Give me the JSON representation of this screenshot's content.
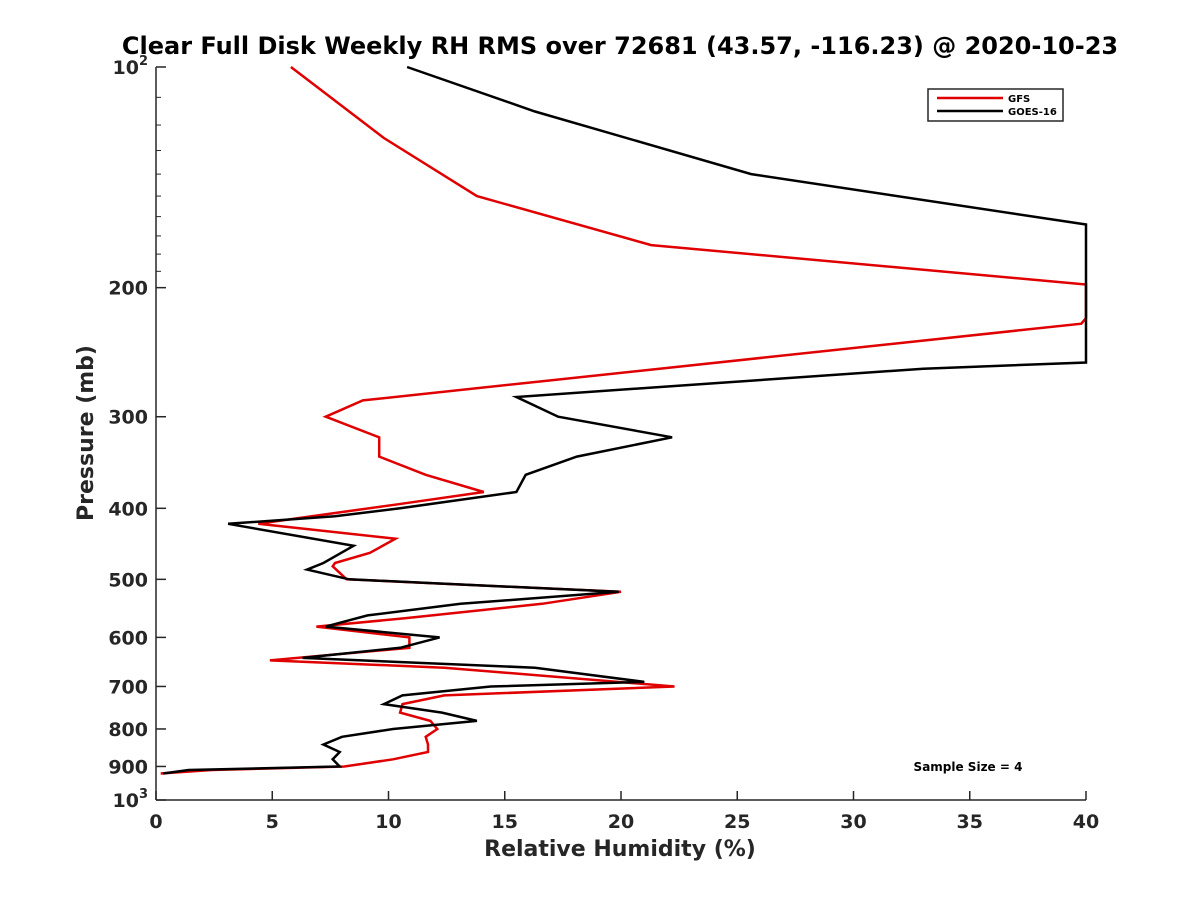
{
  "chart_data": {
    "type": "line",
    "title": "Clear Full Disk Weekly RH RMS over 72681 (43.57, -116.23) @ 2020-10-23",
    "xlabel": "Relative Humidity (%)",
    "ylabel": "Pressure (mb)",
    "xlim": [
      0,
      40
    ],
    "ylim": [
      100,
      1000
    ],
    "y_scale": "log",
    "y_reversed": true,
    "x_ticks": [
      "0",
      "5",
      "10",
      "15",
      "20",
      "25",
      "30",
      "35",
      "40"
    ],
    "y_ticks": [
      {
        "value": 100,
        "base": "10",
        "exp": "2"
      },
      {
        "value": 200,
        "label": "200"
      },
      {
        "value": 300,
        "label": "300"
      },
      {
        "value": 400,
        "label": "400"
      },
      {
        "value": 500,
        "label": "500"
      },
      {
        "value": 600,
        "label": "600"
      },
      {
        "value": 700,
        "label": "700"
      },
      {
        "value": 800,
        "label": "800"
      },
      {
        "value": 900,
        "label": "900"
      },
      {
        "value": 1000,
        "base": "10",
        "exp": "3"
      }
    ],
    "legend_position": "top-right",
    "annotation": "Sample Size = 4",
    "series": [
      {
        "name": "GFS",
        "color": "#e00000",
        "points": [
          [
            5.8,
            100
          ],
          [
            9.8,
            125
          ],
          [
            13.8,
            150
          ],
          [
            21.3,
            175
          ],
          [
            40,
            198
          ],
          [
            40,
            220
          ],
          [
            39.8,
            224
          ],
          [
            8.9,
            285
          ],
          [
            7.3,
            300
          ],
          [
            9.6,
            320
          ],
          [
            9.6,
            340
          ],
          [
            11.6,
            360
          ],
          [
            14.1,
            380
          ],
          [
            10.4,
            395
          ],
          [
            6.7,
            410
          ],
          [
            4.4,
            420
          ],
          [
            10.3,
            440
          ],
          [
            9.2,
            460
          ],
          [
            7.7,
            475
          ],
          [
            7.6,
            480
          ],
          [
            8.2,
            500
          ],
          [
            20,
            520
          ],
          [
            16.6,
            540
          ],
          [
            10.7,
            565
          ],
          [
            6.9,
            580
          ],
          [
            10.9,
            600
          ],
          [
            10.9,
            620
          ],
          [
            4.9,
            645
          ],
          [
            12.4,
            660
          ],
          [
            22.3,
            700
          ],
          [
            12.4,
            720
          ],
          [
            10.6,
            740
          ],
          [
            10.5,
            760
          ],
          [
            11.8,
            780
          ],
          [
            12.1,
            800
          ],
          [
            11.6,
            820
          ],
          [
            11.7,
            840
          ],
          [
            11.7,
            860
          ],
          [
            10.2,
            880
          ],
          [
            8.1,
            900
          ],
          [
            2.4,
            910
          ],
          [
            0.2,
            920
          ]
        ]
      },
      {
        "name": "GOES-16",
        "color": "#000000",
        "points": [
          [
            10.8,
            100
          ],
          [
            16.3,
            115
          ],
          [
            25.6,
            140
          ],
          [
            40,
            164
          ],
          [
            40,
            253
          ],
          [
            33,
            258
          ],
          [
            15.5,
            282
          ],
          [
            17.3,
            300
          ],
          [
            22.2,
            320
          ],
          [
            18.1,
            340
          ],
          [
            15.9,
            360
          ],
          [
            15.5,
            380
          ],
          [
            10.5,
            400
          ],
          [
            7.7,
            410
          ],
          [
            3.1,
            420
          ],
          [
            8.5,
            450
          ],
          [
            7.2,
            475
          ],
          [
            6.5,
            485
          ],
          [
            8.3,
            500
          ],
          [
            19.9,
            520
          ],
          [
            13.1,
            540
          ],
          [
            9.1,
            560
          ],
          [
            7.3,
            580
          ],
          [
            12.2,
            600
          ],
          [
            10.5,
            620
          ],
          [
            6.3,
            640
          ],
          [
            16.3,
            660
          ],
          [
            21,
            690
          ],
          [
            14.4,
            700
          ],
          [
            10.6,
            720
          ],
          [
            9.8,
            740
          ],
          [
            12.3,
            760
          ],
          [
            13.8,
            780
          ],
          [
            10.2,
            800
          ],
          [
            8,
            820
          ],
          [
            7.2,
            840
          ],
          [
            7.9,
            860
          ],
          [
            7.6,
            880
          ],
          [
            7.9,
            900
          ],
          [
            1.4,
            910
          ],
          [
            0.3,
            920
          ]
        ]
      }
    ]
  }
}
